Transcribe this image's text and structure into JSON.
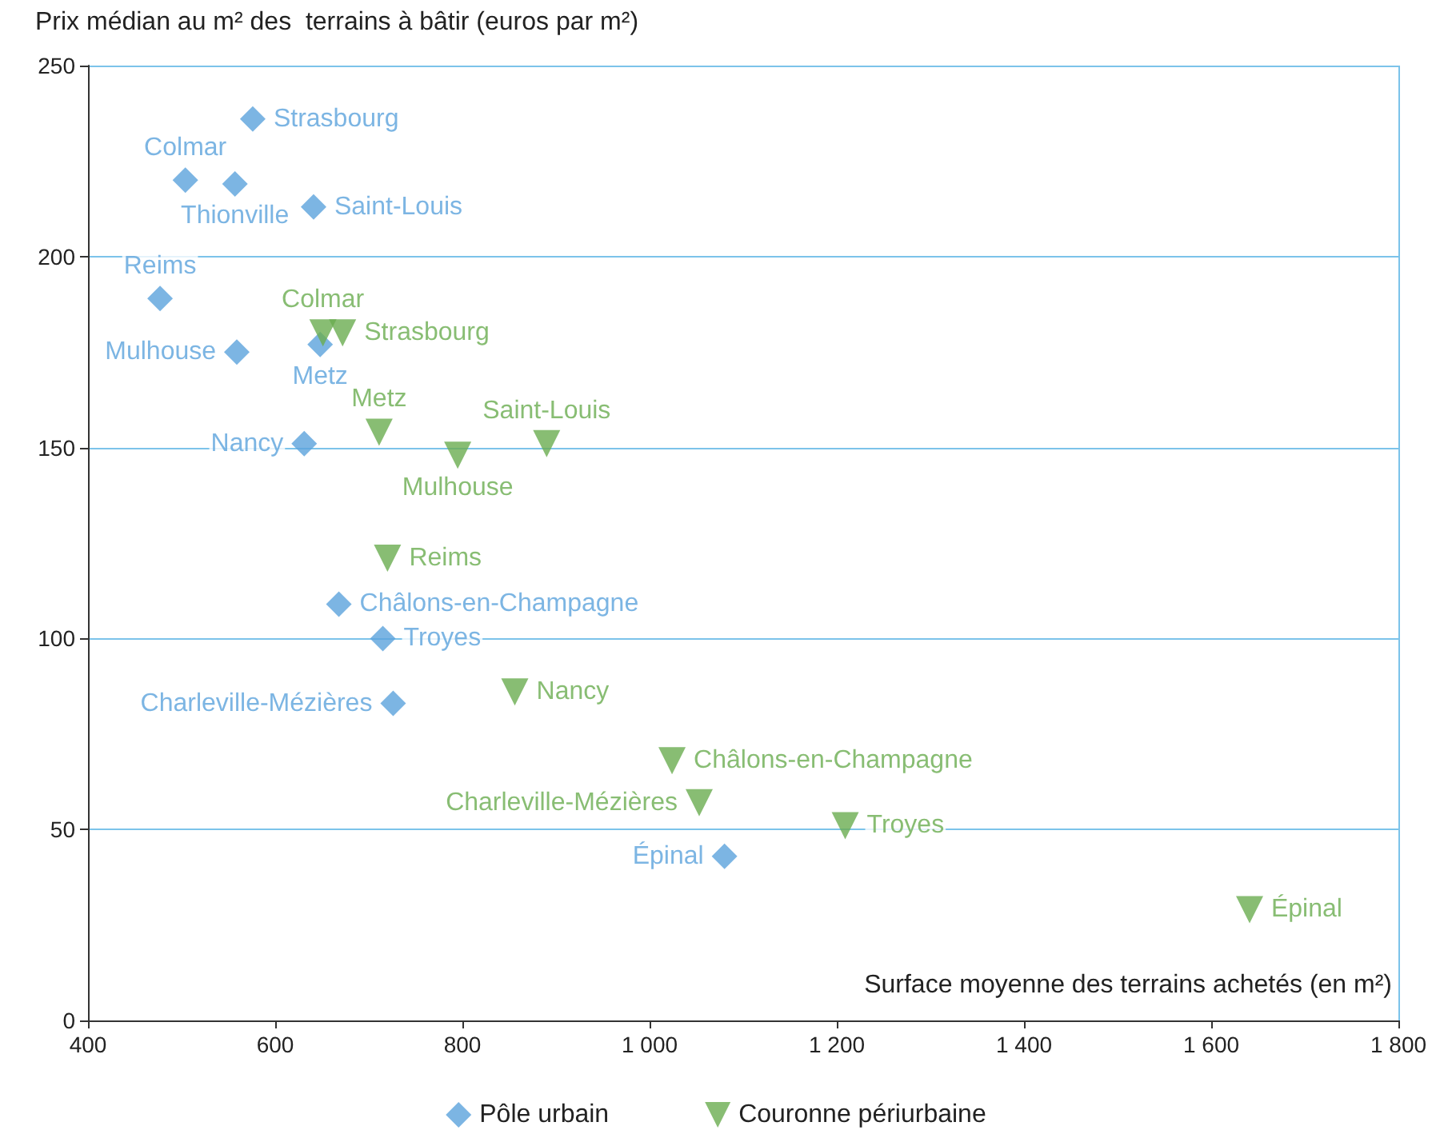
{
  "chart_data": {
    "type": "scatter",
    "ylabel": "Prix médian au m² des  terrains à bâtir (euros par m²)",
    "xlabel": "Surface moyenne des terrains achetés (en m²)",
    "xlim": [
      400,
      1800
    ],
    "xticks": [
      400,
      600,
      800,
      {
        "value": 1000,
        "label": "1 000"
      },
      {
        "value": 1200,
        "label": "1 200"
      },
      {
        "value": 1400,
        "label": "1 400"
      },
      {
        "value": 1600,
        "label": "1 600"
      },
      {
        "value": 1800,
        "label": "1 800"
      }
    ],
    "ylim": [
      0,
      250
    ],
    "yticks": [
      0,
      50,
      100,
      150,
      200,
      250
    ],
    "grid": "y",
    "legend": "bottom",
    "series": [
      {
        "name": "Pôle urbain",
        "color": "#5ba3dc",
        "marker": "diamond",
        "x": [
          576,
          504,
          557,
          641,
          477,
          559,
          648,
          631,
          668,
          715,
          726,
          1080
        ],
        "values": [
          236,
          220,
          219,
          213,
          189,
          175,
          177,
          151,
          109,
          100,
          83,
          43
        ],
        "value_labels": [
          "Strasbourg",
          "Colmar",
          "Thionville",
          "Saint-Louis",
          "Reims",
          "Mulhouse",
          "Metz",
          "Nancy",
          "Châlons-en-Champagne",
          "Troyes",
          "Charleville-Mézières",
          "Épinal"
        ]
      },
      {
        "name": "Couronne périurbaine",
        "color": "#6aad50",
        "marker": "triangle",
        "x": [
          651,
          672,
          711,
          795,
          890,
          720,
          856,
          1024,
          1053,
          1209,
          1641
        ],
        "values": [
          180,
          180,
          154,
          148,
          151,
          121,
          86,
          68,
          57,
          51,
          29
        ],
        "value_labels": [
          "Colmar",
          "Strasbourg",
          "Metz",
          "Mulhouse",
          "Saint-Louis",
          "Reims",
          "Nancy",
          "Châlons-en-Champagne",
          "Charleville-Mézières",
          "Troyes",
          "Épinal"
        ]
      }
    ]
  }
}
